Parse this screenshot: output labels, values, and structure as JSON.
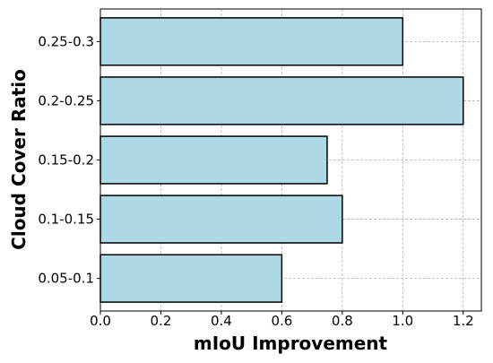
{
  "chart_data": {
    "type": "barh",
    "xlabel": "mIoU Improvement",
    "ylabel": "Cloud Cover Ratio",
    "categories": [
      "0.05-0.1",
      "0.1-0.15",
      "0.15-0.2",
      "0.2-0.25",
      "0.25-0.3"
    ],
    "values": [
      0.6,
      0.8,
      0.75,
      1.2,
      1.0
    ],
    "color": "#add8e6",
    "xlim": [
      0,
      1.26
    ],
    "xticks": [
      {
        "value": 0,
        "label": "0.0"
      },
      0.2,
      0.4,
      0.6,
      0.8,
      {
        "value": 1,
        "label": "1.0"
      },
      1.2
    ],
    "grid": true
  }
}
